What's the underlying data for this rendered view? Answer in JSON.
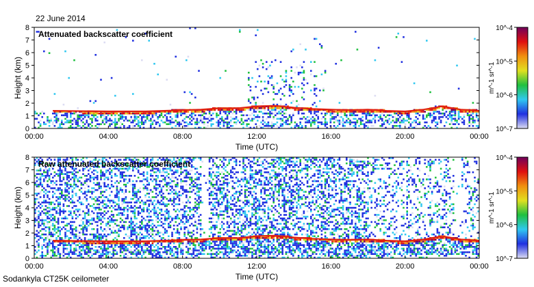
{
  "figure": {
    "date": "22 June 2014",
    "station": "Sodankyla CT25K ceilometer"
  },
  "colors": {
    "scale": [
      "#dcdcf2",
      "#2030e0",
      "#30c8f0",
      "#20c040",
      "#e0e020",
      "#f09010",
      "#e01010",
      "#70005a"
    ],
    "cloud": "#e02010",
    "background": "#ffffff"
  },
  "chart_data": [
    {
      "type": "heatmap",
      "title": "Attenuated backscatter coefficient",
      "xlabel": "Time (UTC)",
      "ylabel": "Height (km)",
      "xticks": [
        "00:00",
        "04:00",
        "08:00",
        "12:00",
        "16:00",
        "20:00",
        "00:00"
      ],
      "xlim_hours": [
        0,
        24
      ],
      "yticks": [
        0,
        1,
        2,
        3,
        4,
        5,
        6,
        7,
        8
      ],
      "ylim": [
        0,
        8
      ],
      "colorbar": {
        "labels": [
          "10^-4",
          "10^-5",
          "10^-6",
          "10^-7"
        ],
        "unit": "m^-1 sr^-1"
      },
      "cloud_base_km": [
        [
          1.0,
          1.4
        ],
        [
          4.0,
          1.35
        ],
        [
          6.0,
          1.35
        ],
        [
          8.0,
          1.45
        ],
        [
          9.0,
          1.5
        ],
        [
          10.0,
          1.6
        ],
        [
          11.0,
          1.6
        ],
        [
          12.0,
          1.75
        ],
        [
          13.0,
          1.8
        ],
        [
          14.0,
          1.65
        ],
        [
          15.0,
          1.55
        ],
        [
          16.0,
          1.5
        ],
        [
          17.0,
          1.45
        ],
        [
          18.0,
          1.5
        ],
        [
          19.0,
          1.4
        ],
        [
          20.0,
          1.35
        ],
        [
          21.0,
          1.5
        ],
        [
          22.0,
          1.75
        ],
        [
          23.0,
          1.5
        ],
        [
          24.0,
          1.4
        ]
      ]
    },
    {
      "type": "heatmap",
      "title": "Raw attenuated backscatter coefficient",
      "xlabel": "Time (UTC)",
      "ylabel": "Height (km)",
      "xticks": [
        "00:00",
        "04:00",
        "08:00",
        "12:00",
        "16:00",
        "20:00",
        "00:00"
      ],
      "xlim_hours": [
        0,
        24
      ],
      "yticks": [
        0,
        1,
        2,
        3,
        4,
        5,
        6,
        7,
        8
      ],
      "ylim": [
        0,
        8
      ],
      "colorbar": {
        "labels": [
          "10^-4",
          "10^-5",
          "10^-6",
          "10^-7"
        ],
        "unit": "m^-1 sr^-1"
      },
      "cloud_base_km": [
        [
          1.0,
          1.4
        ],
        [
          4.0,
          1.35
        ],
        [
          6.0,
          1.35
        ],
        [
          8.0,
          1.45
        ],
        [
          9.0,
          1.5
        ],
        [
          10.0,
          1.6
        ],
        [
          11.0,
          1.6
        ],
        [
          12.0,
          1.75
        ],
        [
          13.0,
          1.8
        ],
        [
          14.0,
          1.65
        ],
        [
          15.0,
          1.55
        ],
        [
          16.0,
          1.5
        ],
        [
          17.0,
          1.45
        ],
        [
          18.0,
          1.5
        ],
        [
          19.0,
          1.4
        ],
        [
          20.0,
          1.35
        ],
        [
          21.0,
          1.5
        ],
        [
          22.0,
          1.75
        ],
        [
          23.0,
          1.5
        ],
        [
          24.0,
          1.4
        ]
      ]
    }
  ]
}
